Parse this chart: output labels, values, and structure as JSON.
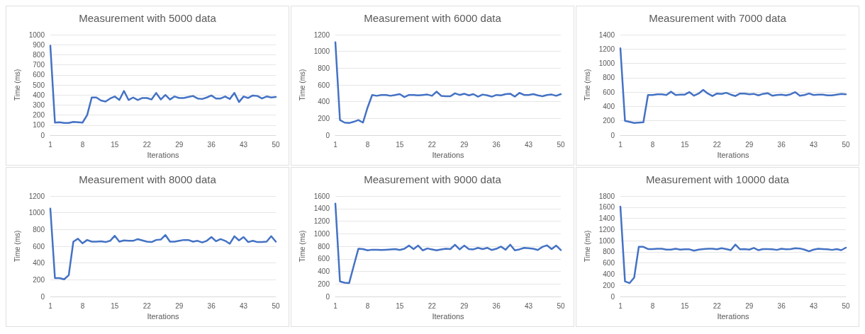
{
  "chart_data": [
    {
      "type": "line",
      "title": "Measurement with 5000 data",
      "xlabel": "Iterations",
      "ylabel": "Time (ms)",
      "grid": "y",
      "marker": "none",
      "xlim": [
        1,
        50
      ],
      "xticks": [
        1,
        8,
        15,
        22,
        29,
        36,
        43,
        50
      ],
      "ylim": [
        0,
        1000
      ],
      "yticks": [
        0,
        100,
        200,
        300,
        400,
        500,
        600,
        700,
        800,
        900,
        1000
      ],
      "x": [
        1,
        2,
        3,
        4,
        5,
        6,
        7,
        8,
        9,
        10,
        11,
        12,
        13,
        14,
        15,
        16,
        17,
        18,
        19,
        20,
        21,
        22,
        23,
        24,
        25,
        26,
        27,
        28,
        29,
        30,
        31,
        32,
        33,
        34,
        35,
        36,
        37,
        38,
        39,
        40,
        41,
        42,
        43,
        44,
        45,
        46,
        47,
        48,
        49,
        50
      ],
      "series": [
        {
          "color": "#4472c4",
          "values": [
            890,
            125,
            128,
            122,
            122,
            132,
            128,
            125,
            200,
            375,
            375,
            345,
            335,
            365,
            385,
            350,
            440,
            350,
            375,
            350,
            370,
            370,
            355,
            420,
            355,
            400,
            355,
            385,
            370,
            370,
            380,
            390,
            365,
            360,
            375,
            395,
            365,
            365,
            385,
            360,
            420,
            330,
            385,
            370,
            395,
            390,
            365,
            385,
            375,
            380
          ]
        }
      ]
    },
    {
      "type": "line",
      "title": "Measurement with 6000 data",
      "xlabel": "Iterations",
      "ylabel": "Time (ms)",
      "grid": "y",
      "marker": "none",
      "xlim": [
        1,
        50
      ],
      "xticks": [
        1,
        8,
        15,
        22,
        29,
        36,
        43,
        50
      ],
      "ylim": [
        0,
        1200
      ],
      "yticks": [
        0,
        200,
        400,
        600,
        800,
        1000,
        1200
      ],
      "x": [
        1,
        2,
        3,
        4,
        5,
        6,
        7,
        8,
        9,
        10,
        11,
        12,
        13,
        14,
        15,
        16,
        17,
        18,
        19,
        20,
        21,
        22,
        23,
        24,
        25,
        26,
        27,
        28,
        29,
        30,
        31,
        32,
        33,
        34,
        35,
        36,
        37,
        38,
        39,
        40,
        41,
        42,
        43,
        44,
        45,
        46,
        47,
        48,
        49,
        50
      ],
      "series": [
        {
          "color": "#4472c4",
          "values": [
            1110,
            180,
            150,
            145,
            160,
            180,
            150,
            330,
            480,
            470,
            480,
            480,
            470,
            480,
            490,
            455,
            480,
            480,
            475,
            480,
            485,
            470,
            520,
            470,
            465,
            465,
            500,
            480,
            495,
            475,
            490,
            460,
            485,
            475,
            460,
            480,
            475,
            490,
            495,
            460,
            505,
            480,
            480,
            490,
            475,
            465,
            480,
            485,
            470,
            490
          ]
        }
      ]
    },
    {
      "type": "line",
      "title": "Measurement with 7000 data",
      "xlabel": "Iterations",
      "ylabel": "Time (ms)",
      "grid": "y",
      "marker": "none",
      "xlim": [
        1,
        50
      ],
      "xticks": [
        1,
        8,
        15,
        22,
        29,
        36,
        43,
        50
      ],
      "ylim": [
        0,
        1400
      ],
      "yticks": [
        0,
        200,
        400,
        600,
        800,
        1000,
        1200,
        1400
      ],
      "x": [
        1,
        2,
        3,
        4,
        5,
        6,
        7,
        8,
        9,
        10,
        11,
        12,
        13,
        14,
        15,
        16,
        17,
        18,
        19,
        20,
        21,
        22,
        23,
        24,
        25,
        26,
        27,
        28,
        29,
        30,
        31,
        32,
        33,
        34,
        35,
        36,
        37,
        38,
        39,
        40,
        41,
        42,
        43,
        44,
        45,
        46,
        47,
        48,
        49,
        50
      ],
      "series": [
        {
          "color": "#4472c4",
          "values": [
            1210,
            200,
            185,
            170,
            175,
            180,
            560,
            560,
            570,
            570,
            560,
            605,
            560,
            565,
            565,
            600,
            550,
            580,
            630,
            580,
            545,
            580,
            575,
            590,
            565,
            545,
            580,
            580,
            570,
            575,
            555,
            575,
            585,
            550,
            560,
            565,
            555,
            570,
            600,
            550,
            560,
            580,
            560,
            565,
            565,
            555,
            555,
            565,
            575,
            570
          ]
        }
      ]
    },
    {
      "type": "line",
      "title": "Measurement with 8000 data",
      "xlabel": "Iterations",
      "ylabel": "Time (ms)",
      "grid": "y",
      "marker": "none",
      "xlim": [
        1,
        50
      ],
      "xticks": [
        1,
        8,
        15,
        22,
        29,
        36,
        43,
        50
      ],
      "ylim": [
        0,
        1200
      ],
      "yticks": [
        0,
        200,
        400,
        600,
        800,
        1000,
        1200
      ],
      "x": [
        1,
        2,
        3,
        4,
        5,
        6,
        7,
        8,
        9,
        10,
        11,
        12,
        13,
        14,
        15,
        16,
        17,
        18,
        19,
        20,
        21,
        22,
        23,
        24,
        25,
        26,
        27,
        28,
        29,
        30,
        31,
        32,
        33,
        34,
        35,
        36,
        37,
        38,
        39,
        40,
        41,
        42,
        43,
        44,
        45,
        46,
        47,
        48,
        49,
        50
      ],
      "series": [
        {
          "color": "#4472c4",
          "values": [
            1050,
            220,
            220,
            205,
            255,
            655,
            690,
            635,
            675,
            655,
            655,
            660,
            650,
            665,
            725,
            655,
            670,
            665,
            665,
            685,
            670,
            655,
            650,
            675,
            680,
            735,
            655,
            655,
            665,
            675,
            675,
            655,
            665,
            645,
            665,
            710,
            660,
            685,
            665,
            630,
            720,
            670,
            710,
            650,
            665,
            650,
            650,
            655,
            720,
            655
          ]
        }
      ]
    },
    {
      "type": "line",
      "title": "Measurement with 9000 data",
      "xlabel": "Iterations",
      "ylabel": "Time (ms)",
      "grid": "y",
      "marker": "none",
      "xlim": [
        1,
        50
      ],
      "xticks": [
        1,
        8,
        15,
        22,
        29,
        36,
        43,
        50
      ],
      "ylim": [
        0,
        1600
      ],
      "yticks": [
        0,
        200,
        400,
        600,
        800,
        1000,
        1200,
        1400,
        1600
      ],
      "x": [
        1,
        2,
        3,
        4,
        5,
        6,
        7,
        8,
        9,
        10,
        11,
        12,
        13,
        14,
        15,
        16,
        17,
        18,
        19,
        20,
        21,
        22,
        23,
        24,
        25,
        26,
        27,
        28,
        29,
        30,
        31,
        32,
        33,
        34,
        35,
        36,
        37,
        38,
        39,
        40,
        41,
        42,
        43,
        44,
        45,
        46,
        47,
        48,
        49,
        50
      ],
      "series": [
        {
          "color": "#4472c4",
          "values": [
            1480,
            240,
            220,
            215,
            490,
            760,
            755,
            735,
            745,
            745,
            740,
            745,
            750,
            755,
            740,
            760,
            810,
            755,
            810,
            735,
            765,
            750,
            735,
            750,
            760,
            755,
            825,
            750,
            810,
            755,
            750,
            775,
            755,
            775,
            740,
            760,
            795,
            745,
            825,
            735,
            750,
            775,
            770,
            760,
            740,
            790,
            815,
            755,
            810,
            740
          ]
        }
      ]
    },
    {
      "type": "line",
      "title": "Measurement with 10000 data",
      "xlabel": "Iterations",
      "ylabel": "Time (ms)",
      "grid": "y",
      "marker": "none",
      "xlim": [
        1,
        50
      ],
      "xticks": [
        1,
        8,
        15,
        22,
        29,
        36,
        43,
        50
      ],
      "ylim": [
        0,
        1800
      ],
      "yticks": [
        0,
        200,
        400,
        600,
        800,
        1000,
        1200,
        1400,
        1600,
        1800
      ],
      "x": [
        1,
        2,
        3,
        4,
        5,
        6,
        7,
        8,
        9,
        10,
        11,
        12,
        13,
        14,
        15,
        16,
        17,
        18,
        19,
        20,
        21,
        22,
        23,
        24,
        25,
        26,
        27,
        28,
        29,
        30,
        31,
        32,
        33,
        34,
        35,
        36,
        37,
        38,
        39,
        40,
        41,
        42,
        43,
        44,
        45,
        46,
        47,
        48,
        49,
        50
      ],
      "series": [
        {
          "color": "#4472c4",
          "values": [
            1610,
            270,
            240,
            340,
            890,
            890,
            850,
            850,
            855,
            855,
            840,
            840,
            855,
            840,
            845,
            845,
            820,
            840,
            850,
            855,
            855,
            845,
            865,
            850,
            830,
            930,
            845,
            850,
            840,
            870,
            830,
            850,
            850,
            845,
            835,
            855,
            845,
            850,
            865,
            860,
            840,
            810,
            840,
            855,
            850,
            845,
            835,
            850,
            830,
            875
          ]
        }
      ]
    }
  ]
}
